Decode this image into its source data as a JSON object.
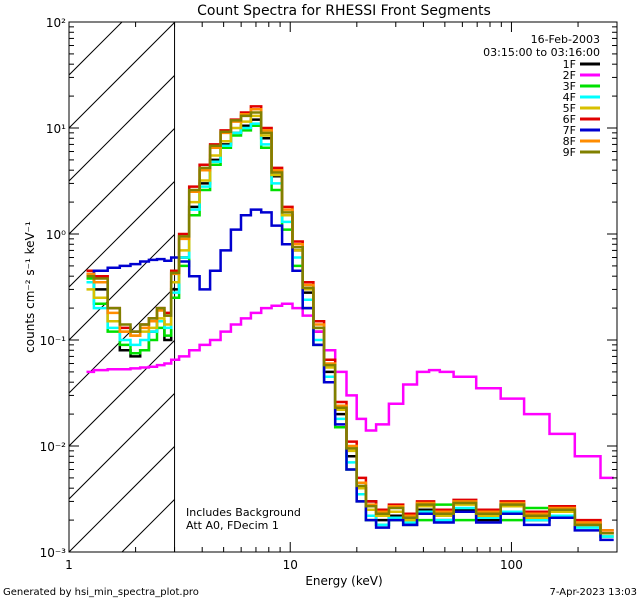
{
  "footer": {
    "generated_by": "Generated by hsi_min_spectra_plot.pro",
    "timestamp": "7-Apr-2023 13:03"
  },
  "chart_data": {
    "type": "line",
    "title": "Count Spectra for RHESSI Front Segments",
    "subtitle_date": "16-Feb-2003",
    "subtitle_time": "03:15:00 to 03:16:00",
    "xlabel": "Energy (keV)",
    "ylabel": "counts cm⁻² s⁻¹ keV⁻¹",
    "xscale": "log",
    "yscale": "log",
    "xlim": [
      1,
      300
    ],
    "ylim": [
      0.001,
      100
    ],
    "x_ticks": [
      {
        "value": 1,
        "label": "1"
      },
      {
        "value": 10,
        "label": "10"
      },
      {
        "value": 100,
        "label": "100"
      }
    ],
    "y_ticks": [
      {
        "value": 100,
        "label": "10²"
      },
      {
        "value": 10,
        "label": "10¹"
      },
      {
        "value": 1,
        "label": "10⁰"
      },
      {
        "value": 0.1,
        "label": "10⁻¹"
      },
      {
        "value": 0.01,
        "label": "10⁻²"
      },
      {
        "value": 0.001,
        "label": "10⁻³"
      }
    ],
    "hatched_region": {
      "x_from": 1,
      "x_to": 3
    },
    "annotations": [
      "Includes Background",
      "Att A0, FDecim 1"
    ],
    "legend_position": "top-right",
    "series": [
      {
        "name": "1F",
        "color": "#000000",
        "x": [
          1.2,
          1.4,
          1.6,
          1.8,
          2.0,
          2.2,
          2.4,
          2.6,
          2.8,
          3.0,
          3.3,
          3.7,
          4.1,
          4.6,
          5.1,
          5.7,
          6.3,
          7.0,
          7.8,
          8.7,
          9.7,
          10.8,
          12,
          13.5,
          15,
          17,
          19,
          21,
          23,
          26,
          30,
          35,
          40,
          50,
          60,
          80,
          100,
          130,
          170,
          220,
          290
        ],
        "y": [
          0.45,
          0.3,
          0.15,
          0.08,
          0.07,
          0.08,
          0.12,
          0.15,
          0.1,
          0.3,
          0.6,
          1.8,
          3.0,
          5.0,
          7.0,
          9.0,
          10.5,
          12.0,
          8.0,
          3.5,
          1.5,
          0.7,
          0.28,
          0.12,
          0.05,
          0.02,
          0.008,
          0.004,
          0.003,
          0.002,
          0.0022,
          0.0018,
          0.0025,
          0.002,
          0.0025,
          0.002,
          0.0028,
          0.002,
          0.0025,
          0.0018,
          0.0015
        ]
      },
      {
        "name": "2F",
        "color": "#ff00ff",
        "x": [
          1.2,
          1.4,
          1.6,
          1.8,
          2.0,
          2.2,
          2.4,
          2.6,
          2.8,
          3.0,
          3.3,
          3.7,
          4.1,
          4.6,
          5.1,
          5.7,
          6.3,
          7.0,
          7.8,
          8.7,
          9.7,
          10.8,
          12,
          13.5,
          15,
          17,
          19,
          21,
          23,
          26,
          30,
          35,
          40,
          45,
          50,
          60,
          80,
          100,
          130,
          170,
          220,
          290
        ],
        "y": [
          0.05,
          0.052,
          0.053,
          0.053,
          0.054,
          0.055,
          0.056,
          0.058,
          0.06,
          0.065,
          0.07,
          0.08,
          0.09,
          0.1,
          0.12,
          0.14,
          0.16,
          0.18,
          0.2,
          0.21,
          0.22,
          0.2,
          0.17,
          0.12,
          0.08,
          0.05,
          0.03,
          0.018,
          0.014,
          0.016,
          0.025,
          0.038,
          0.05,
          0.052,
          0.05,
          0.045,
          0.035,
          0.028,
          0.02,
          0.013,
          0.008,
          0.005
        ]
      },
      {
        "name": "3F",
        "color": "#00e000",
        "x": [
          1.2,
          1.4,
          1.6,
          1.8,
          2.0,
          2.2,
          2.4,
          2.6,
          2.8,
          3.0,
          3.3,
          3.7,
          4.1,
          4.6,
          5.1,
          5.7,
          6.3,
          7.0,
          7.8,
          8.7,
          9.7,
          10.8,
          12,
          13.5,
          15,
          17,
          19,
          21,
          23,
          26,
          30,
          35,
          40,
          50,
          60,
          80,
          100,
          130,
          170,
          220,
          290
        ],
        "y": [
          0.38,
          0.22,
          0.12,
          0.09,
          0.075,
          0.08,
          0.1,
          0.13,
          0.11,
          0.25,
          0.5,
          1.5,
          2.6,
          4.5,
          6.5,
          8.5,
          9.5,
          10.5,
          6.5,
          2.6,
          1.1,
          0.5,
          0.2,
          0.09,
          0.04,
          0.015,
          0.006,
          0.003,
          0.002,
          0.0018,
          0.002,
          0.0022,
          0.002,
          0.0028,
          0.002,
          0.0025,
          0.002,
          0.0026,
          0.0022,
          0.0018,
          0.0014
        ]
      },
      {
        "name": "4F",
        "color": "#00ffff",
        "x": [
          1.2,
          1.4,
          1.6,
          1.8,
          2.0,
          2.2,
          2.4,
          2.6,
          2.8,
          3.0,
          3.3,
          3.7,
          4.1,
          4.6,
          5.1,
          5.7,
          6.3,
          7.0,
          7.8,
          8.7,
          9.7,
          10.8,
          12,
          13.5,
          15,
          17,
          19,
          21,
          23,
          26,
          30,
          35,
          40,
          50,
          60,
          80,
          100,
          130,
          170,
          220,
          290
        ],
        "y": [
          0.35,
          0.2,
          0.13,
          0.1,
          0.09,
          0.1,
          0.12,
          0.15,
          0.13,
          0.28,
          0.6,
          1.7,
          2.8,
          4.8,
          6.8,
          9.0,
          10.0,
          11.0,
          7.0,
          3.0,
          1.3,
          0.6,
          0.24,
          0.1,
          0.045,
          0.018,
          0.007,
          0.0035,
          0.0022,
          0.0018,
          0.0021,
          0.0019,
          0.0024,
          0.002,
          0.0026,
          0.0021,
          0.0024,
          0.002,
          0.0022,
          0.0017,
          0.0014
        ]
      },
      {
        "name": "5F",
        "color": "#d8c000",
        "x": [
          1.2,
          1.4,
          1.6,
          1.8,
          2.0,
          2.2,
          2.4,
          2.6,
          2.8,
          3.0,
          3.3,
          3.7,
          4.1,
          4.6,
          5.1,
          5.7,
          6.3,
          7.0,
          7.8,
          8.7,
          9.7,
          10.8,
          12,
          13.5,
          15,
          17,
          19,
          21,
          23,
          26,
          30,
          35,
          40,
          50,
          60,
          80,
          100,
          130,
          170,
          220,
          290
        ],
        "y": [
          0.3,
          0.25,
          0.15,
          0.12,
          0.11,
          0.12,
          0.13,
          0.16,
          0.14,
          0.35,
          0.7,
          2.0,
          3.2,
          5.5,
          7.5,
          10.0,
          11.5,
          13.0,
          8.5,
          3.6,
          1.5,
          0.7,
          0.3,
          0.13,
          0.055,
          0.022,
          0.009,
          0.004,
          0.0025,
          0.0022,
          0.0024,
          0.002,
          0.0027,
          0.0022,
          0.0028,
          0.0022,
          0.0027,
          0.0021,
          0.0024,
          0.0018,
          0.0015
        ]
      },
      {
        "name": "6F",
        "color": "#e00000",
        "x": [
          1.2,
          1.4,
          1.6,
          1.8,
          2.0,
          2.2,
          2.4,
          2.6,
          2.8,
          3.0,
          3.3,
          3.7,
          4.1,
          4.6,
          5.1,
          5.7,
          6.3,
          7.0,
          7.8,
          8.7,
          9.7,
          10.8,
          12,
          13.5,
          15,
          17,
          19,
          21,
          23,
          26,
          30,
          35,
          40,
          50,
          60,
          80,
          100,
          130,
          170,
          220,
          290
        ],
        "y": [
          0.45,
          0.4,
          0.2,
          0.13,
          0.12,
          0.14,
          0.16,
          0.2,
          0.18,
          0.45,
          1.0,
          2.8,
          4.5,
          7.0,
          9.5,
          12.0,
          14.0,
          16.0,
          10.0,
          4.2,
          1.8,
          0.85,
          0.35,
          0.15,
          0.065,
          0.026,
          0.011,
          0.005,
          0.003,
          0.0025,
          0.0028,
          0.0023,
          0.003,
          0.0025,
          0.0031,
          0.0025,
          0.003,
          0.0024,
          0.0027,
          0.002,
          0.0016
        ]
      },
      {
        "name": "7F",
        "color": "#0000d0",
        "x": [
          1.2,
          1.4,
          1.6,
          1.8,
          2.0,
          2.2,
          2.4,
          2.6,
          2.8,
          3.0,
          3.3,
          3.7,
          4.1,
          4.6,
          5.1,
          5.7,
          6.3,
          7.0,
          7.8,
          8.7,
          9.7,
          10.8,
          12,
          13.5,
          15,
          17,
          19,
          21,
          23,
          26,
          30,
          35,
          40,
          50,
          60,
          80,
          100,
          130,
          170,
          220,
          290
        ],
        "y": [
          0.42,
          0.45,
          0.48,
          0.5,
          0.52,
          0.55,
          0.57,
          0.58,
          0.56,
          0.6,
          0.55,
          0.4,
          0.3,
          0.45,
          0.7,
          1.1,
          1.5,
          1.7,
          1.6,
          1.2,
          0.8,
          0.45,
          0.2,
          0.09,
          0.04,
          0.016,
          0.006,
          0.003,
          0.002,
          0.0017,
          0.002,
          0.0018,
          0.0023,
          0.0019,
          0.0024,
          0.0019,
          0.0023,
          0.0018,
          0.0021,
          0.0016,
          0.0013
        ]
      },
      {
        "name": "8F",
        "color": "#ff8c00",
        "x": [
          1.2,
          1.4,
          1.6,
          1.8,
          2.0,
          2.2,
          2.4,
          2.6,
          2.8,
          3.0,
          3.3,
          3.7,
          4.1,
          4.6,
          5.1,
          5.7,
          6.3,
          7.0,
          7.8,
          8.7,
          9.7,
          10.8,
          12,
          13.5,
          15,
          17,
          19,
          21,
          23,
          26,
          30,
          35,
          40,
          50,
          60,
          80,
          100,
          130,
          170,
          220,
          290
        ],
        "y": [
          0.42,
          0.35,
          0.18,
          0.12,
          0.11,
          0.13,
          0.15,
          0.19,
          0.17,
          0.42,
          0.9,
          2.5,
          4.0,
          6.5,
          9.0,
          11.5,
          13.5,
          15.0,
          9.5,
          4.0,
          1.7,
          0.8,
          0.33,
          0.14,
          0.06,
          0.024,
          0.01,
          0.0045,
          0.0028,
          0.0024,
          0.0027,
          0.0022,
          0.0029,
          0.0024,
          0.003,
          0.0024,
          0.0029,
          0.0023,
          0.0026,
          0.0019,
          0.0016
        ]
      },
      {
        "name": "9F",
        "color": "#808000",
        "x": [
          1.2,
          1.4,
          1.6,
          1.8,
          2.0,
          2.2,
          2.4,
          2.6,
          2.8,
          3.0,
          3.3,
          3.7,
          4.1,
          4.6,
          5.1,
          5.7,
          6.3,
          7.0,
          7.8,
          8.7,
          9.7,
          10.8,
          12,
          13.5,
          15,
          17,
          19,
          21,
          23,
          26,
          30,
          35,
          40,
          50,
          60,
          80,
          100,
          130,
          170,
          220,
          290
        ],
        "y": [
          0.4,
          0.38,
          0.2,
          0.14,
          0.12,
          0.14,
          0.16,
          0.2,
          0.17,
          0.43,
          0.95,
          2.6,
          4.2,
          6.8,
          9.2,
          11.8,
          13.0,
          14.0,
          9.0,
          3.8,
          1.6,
          0.75,
          0.31,
          0.13,
          0.058,
          0.023,
          0.0095,
          0.0042,
          0.0027,
          0.0023,
          0.0026,
          0.0021,
          0.0028,
          0.0023,
          0.0029,
          0.0023,
          0.0028,
          0.0022,
          0.0025,
          0.0018,
          0.0015
        ]
      }
    ]
  }
}
